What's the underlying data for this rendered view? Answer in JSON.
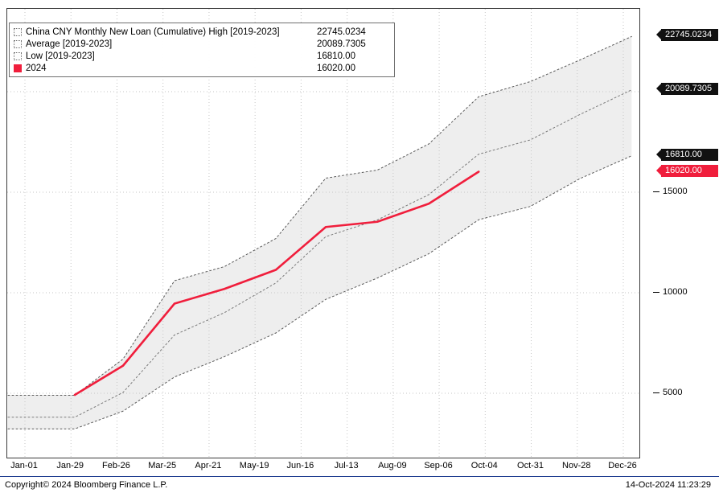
{
  "legend": {
    "items": [
      {
        "label": "China CNY Monthly New Loan (Cumulative) High [2019-2023]",
        "value": "22745.0234",
        "swatch": "band"
      },
      {
        "label": "Average  [2019-2023]",
        "value": "20089.7305",
        "swatch": "band"
      },
      {
        "label": "Low  [2019-2023]",
        "value": "16810.00",
        "swatch": "band"
      },
      {
        "label": "2024",
        "value": "16020.00",
        "swatch": "red"
      }
    ]
  },
  "colors": {
    "red": "#f01e3c",
    "badge_black": "#111111",
    "band_fill": "#eeeeee",
    "high_low_line": "#5a5a5a",
    "average_line": "#7a7a7a",
    "grid": "#c6c6c6"
  },
  "y_axis": {
    "plain_ticks": [
      {
        "label": "15000",
        "value": 15000
      },
      {
        "label": "10000",
        "value": 10000
      },
      {
        "label": "5000",
        "value": 5000
      }
    ],
    "badges": [
      {
        "label": "22745.0234",
        "value": 22745.0234,
        "style": "black"
      },
      {
        "label": "20089.7305",
        "value": 20089.7305,
        "style": "black"
      },
      {
        "label": "16810.00",
        "value": 16810,
        "style": "black"
      },
      {
        "label": "16020.00",
        "value": 16020,
        "style": "red"
      }
    ]
  },
  "x_axis": {
    "ticks": [
      "Jan-01",
      "Jan-29",
      "Feb-26",
      "Mar-25",
      "Apr-21",
      "May-19",
      "Jun-16",
      "Jul-13",
      "Aug-09",
      "Sep-06",
      "Oct-04",
      "Oct-31",
      "Nov-28",
      "Dec-26"
    ]
  },
  "footer": {
    "copyright": "Copyright© 2024 Bloomberg Finance L.P.",
    "timestamp": "14-Oct-2024 11:23:29"
  },
  "chart_data": {
    "type": "line",
    "title": "China CNY Monthly New Loan (Cumulative)",
    "x_categories": [
      "Jan",
      "Feb",
      "Mar",
      "Apr",
      "May",
      "Jun",
      "Jul",
      "Aug",
      "Sep",
      "Oct",
      "Nov",
      "Dec"
    ],
    "x_tick_labels": [
      "Jan-01",
      "Jan-29",
      "Feb-26",
      "Mar-25",
      "Apr-21",
      "May-19",
      "Jun-16",
      "Jul-13",
      "Aug-09",
      "Sep-06",
      "Oct-04",
      "Oct-31",
      "Nov-28",
      "Dec-26"
    ],
    "ylim": [
      2400,
      23600
    ],
    "grid_y": [
      5000,
      10000,
      15000,
      20000
    ],
    "grid": "dotted",
    "legend_position": "top-left",
    "band": {
      "upper": "High [2019-2023]",
      "lower": "Low [2019-2023]",
      "fill": "#eeeeee"
    },
    "series": [
      {
        "name": "High [2019-2023]",
        "role": "high",
        "style": "dotted",
        "color": "#5a5a5a",
        "values": [
          4900,
          6700,
          10600,
          11300,
          12700,
          15700,
          16100,
          17400,
          19750,
          20500,
          21580,
          22745.0234
        ]
      },
      {
        "name": "Average [2019-2023]",
        "role": "average",
        "style": "dotted",
        "color": "#7a7a7a",
        "values": [
          3810,
          5040,
          7900,
          9010,
          10490,
          12790,
          13620,
          14880,
          16890,
          17600,
          18870,
          20089.7305
        ]
      },
      {
        "name": "Low [2019-2023]",
        "role": "low",
        "style": "dotted",
        "color": "#5a5a5a",
        "values": [
          3230,
          4110,
          5810,
          6820,
          8000,
          9670,
          10730,
          11940,
          13630,
          14290,
          15680,
          16810.0
        ]
      },
      {
        "name": "2024",
        "role": "current",
        "style": "solid",
        "color": "#f01e3c",
        "values": [
          4920,
          6370,
          9460,
          10190,
          11140,
          13270,
          13530,
          14430,
          16020.0
        ]
      }
    ]
  }
}
